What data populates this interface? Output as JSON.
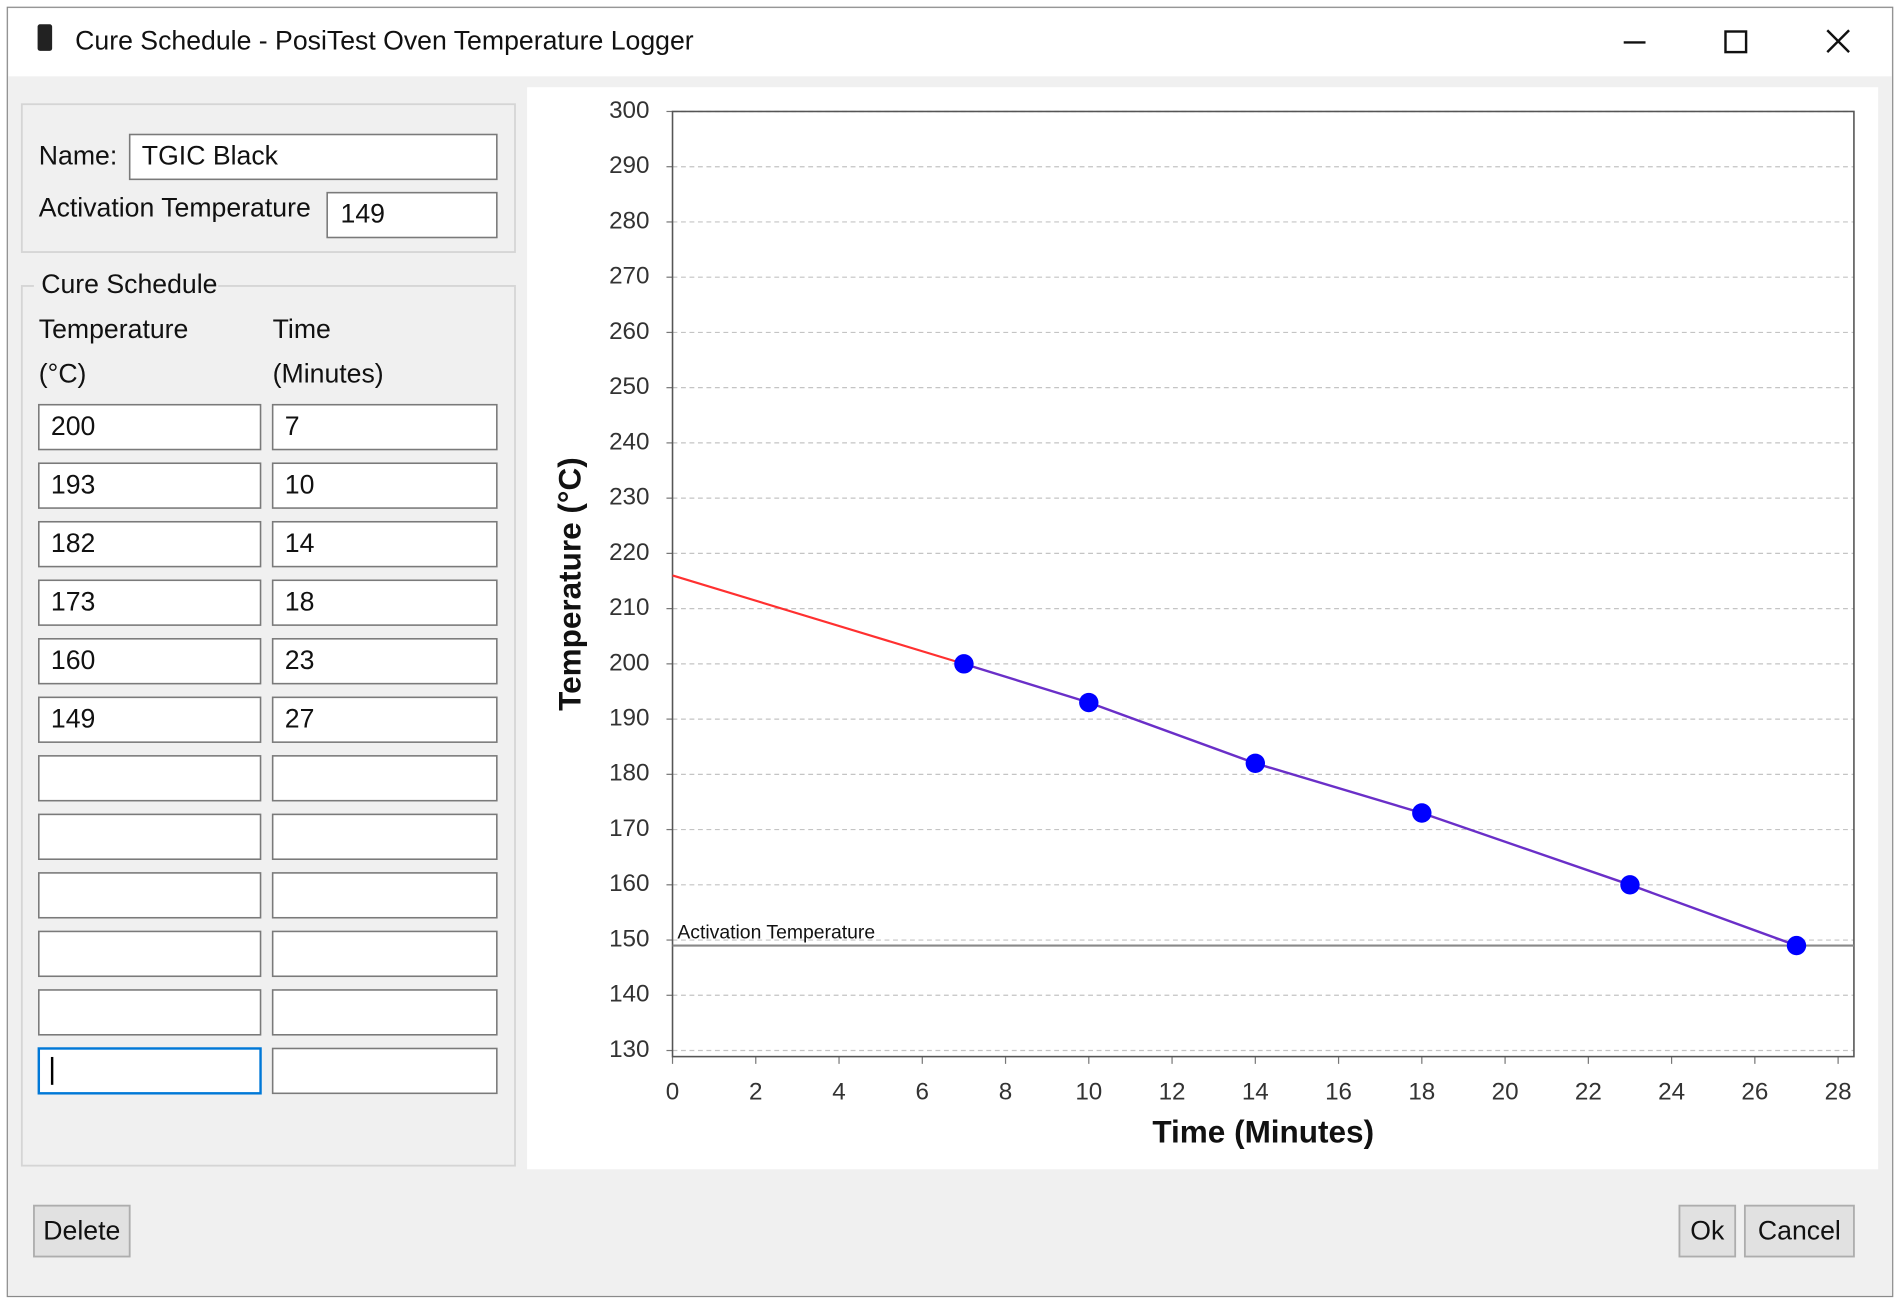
{
  "window": {
    "title": "Cure Schedule - PosiTest Oven Temperature Logger"
  },
  "form": {
    "name_label": "Name:",
    "name_value": "TGIC Black",
    "activation_label": "Activation Temperature",
    "activation_value": "149"
  },
  "schedule": {
    "title": "Cure Schedule",
    "headers": [
      [
        "Temperature",
        "(°C)"
      ],
      [
        "Time",
        "(Minutes)"
      ]
    ],
    "rows": [
      [
        "200",
        "7"
      ],
      [
        "193",
        "10"
      ],
      [
        "182",
        "14"
      ],
      [
        "173",
        "18"
      ],
      [
        "160",
        "23"
      ],
      [
        "149",
        "27"
      ]
    ]
  },
  "buttons": {
    "delete": "Delete",
    "ok": "Ok",
    "cancel": "Cancel"
  },
  "chart_data": {
    "type": "line",
    "xlabel": "Time (Minutes)",
    "ylabel": "Temperature (°C)",
    "x": [
      7,
      10,
      14,
      18,
      23,
      27
    ],
    "series": [
      {
        "color": "#6a2fc8",
        "marker_color": "#0000ff",
        "values": [
          200,
          193,
          182,
          173,
          160,
          149
        ]
      }
    ],
    "extrapolation": {
      "x": [
        0,
        7
      ],
      "values": [
        216,
        200
      ],
      "color": "#ff3030"
    },
    "reference_line": {
      "value": 149,
      "label": "Activation Temperature",
      "color": "#888888"
    },
    "xlim": [
      0,
      28.38
    ],
    "ylim": [
      128.9,
      300
    ],
    "xticks": [
      0,
      2,
      4,
      6,
      8,
      10,
      12,
      14,
      16,
      18,
      20,
      22,
      24,
      26,
      28
    ],
    "yticks": [
      130,
      140,
      150,
      160,
      170,
      180,
      190,
      200,
      210,
      220,
      230,
      240,
      250,
      260,
      270,
      280,
      290,
      300
    ],
    "grid": true
  }
}
